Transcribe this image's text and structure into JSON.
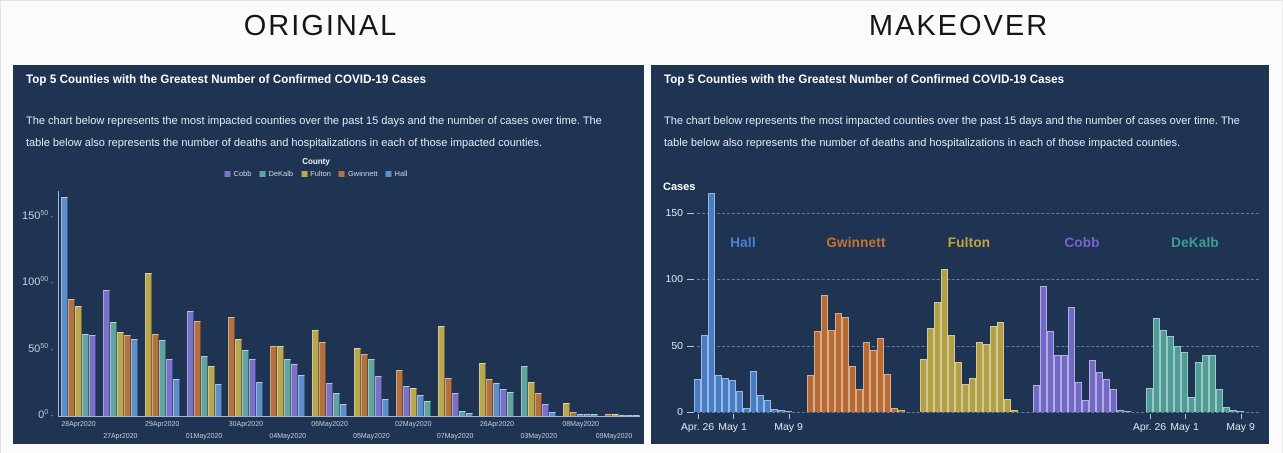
{
  "page": {
    "original_header": "ORIGINAL",
    "makeover_header": "MAKEOVER"
  },
  "panel": {
    "title": "Top 5 Counties with the Greatest Number of Confirmed COVID-19 Cases",
    "subtitle": "The chart below represents the most impacted counties over the past 15 days and the number of cases over time. The table below also represents the number of deaths and hospitalizations in each of those impacted counties.",
    "background": "#1f3353"
  },
  "legend": {
    "title": "County",
    "items": [
      {
        "label": "Cobb",
        "color": "#7a72c9"
      },
      {
        "label": "DeKalb",
        "color": "#61a39e"
      },
      {
        "label": "Fulton",
        "color": "#b9a74e"
      },
      {
        "label": "Gwinnett",
        "color": "#b37140"
      },
      {
        "label": "Hall",
        "color": "#5e8fcb"
      }
    ]
  },
  "chart_data": {
    "type": "bar",
    "title": "Top 5 Counties with the Greatest Number of Confirmed COVID-19 Cases",
    "ylim": [
      0,
      165
    ],
    "y_ticks": [
      0,
      50,
      100,
      150
    ],
    "dates": [
      "26Apr2020",
      "27Apr2020",
      "28Apr2020",
      "29Apr2020",
      "30Apr2020",
      "01May2020",
      "02May2020",
      "03May2020",
      "04May2020",
      "05May2020",
      "06May2020",
      "07May2020",
      "08May2020",
      "09May2020"
    ],
    "series": [
      {
        "name": "Hall",
        "values": [
          25,
          58,
          165,
          28,
          26,
          24,
          16,
          3,
          31,
          13,
          9,
          2,
          1,
          0
        ],
        "colors": {
          "original": "#5e8fcb",
          "makeover": "#477dc4",
          "label": "#4a82cf"
        }
      },
      {
        "name": "Gwinnett",
        "values": [
          28,
          61,
          88,
          62,
          75,
          72,
          35,
          17,
          53,
          47,
          56,
          29,
          3,
          1
        ],
        "colors": {
          "original": "#b37140",
          "makeover": "#b96a31",
          "label": "#c9732c"
        }
      },
      {
        "name": "Fulton",
        "values": [
          40,
          63,
          83,
          108,
          58,
          38,
          21,
          26,
          53,
          51,
          65,
          68,
          10,
          1
        ],
        "colors": {
          "original": "#b9a74e",
          "makeover": "#b2a042",
          "label": "#c5a537"
        }
      },
      {
        "name": "Cobb",
        "values": [
          20,
          95,
          61,
          43,
          43,
          79,
          23,
          9,
          39,
          30,
          25,
          17,
          1,
          0
        ],
        "colors": {
          "original": "#7a72c9",
          "makeover": "#7468c6",
          "label": "#7e62d1"
        }
      },
      {
        "name": "DeKalb",
        "values": [
          18,
          71,
          62,
          57,
          50,
          45,
          11,
          38,
          43,
          43,
          17,
          4,
          1,
          0
        ],
        "colors": {
          "original": "#61a39e",
          "makeover": "#4f9c94",
          "label": "#3ba093"
        }
      }
    ],
    "original": {
      "sort_within_group": "descending",
      "group_order": [
        "28Apr2020",
        "27Apr2020",
        "29Apr2020",
        "01May2020",
        "30Apr2020",
        "04May2020",
        "06May2020",
        "05May2020",
        "02May2020",
        "07May2020",
        "26Apr2020",
        "03May2020",
        "08May2020",
        "09May2020"
      ],
      "y_axis_labels": [
        {
          "v": 0,
          "big": "0",
          "small": "0"
        },
        {
          "v": 50,
          "big": "50",
          "small": "50"
        },
        {
          "v": 100,
          "big": "100",
          "small": "00"
        },
        {
          "v": 150,
          "big": "150",
          "small": "50"
        }
      ]
    },
    "makeover": {
      "ylabel": "Cases",
      "gridlines": "dashed",
      "x_tick_groups": [
        0,
        4
      ],
      "x_ticks": [
        {
          "index": 0,
          "label": "Apr. 26"
        },
        {
          "index": 5,
          "label": "May 1"
        },
        {
          "index": 13,
          "label": "May 9"
        }
      ]
    }
  }
}
